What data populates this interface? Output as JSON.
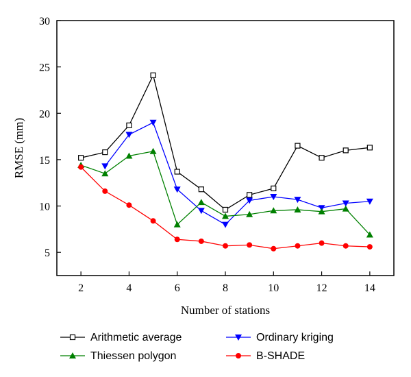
{
  "chart_data": {
    "type": "line",
    "xlabel": "Number of stations",
    "ylabel": "RMSE (mm)",
    "xlim": [
      1.0,
      15.0
    ],
    "ylim": [
      2.5,
      30
    ],
    "xticks": [
      2,
      4,
      6,
      8,
      10,
      12,
      14
    ],
    "yticks": [
      5,
      10,
      15,
      20,
      25,
      30
    ],
    "x": [
      2,
      3,
      4,
      5,
      6,
      7,
      8,
      9,
      10,
      11,
      12,
      13,
      14
    ],
    "legend_position": "bottom",
    "series": [
      {
        "name": "Arithmetic average",
        "color": "#000000",
        "marker": "square-open",
        "x": [
          2,
          3,
          4,
          5,
          6,
          7,
          8,
          9,
          10,
          11,
          12,
          13,
          14
        ],
        "values": [
          15.2,
          15.8,
          18.7,
          24.1,
          13.7,
          11.8,
          9.6,
          11.2,
          11.9,
          16.5,
          15.2,
          16.0,
          16.3
        ]
      },
      {
        "name": "Ordinary kriging",
        "color": "#0000ff",
        "marker": "triangle-down",
        "x": [
          3,
          4,
          5,
          6,
          7,
          8,
          9,
          10,
          11,
          12,
          13,
          14
        ],
        "values": [
          14.3,
          17.7,
          19.0,
          11.8,
          9.5,
          8.0,
          10.6,
          11.0,
          10.7,
          9.8,
          10.3,
          10.5
        ]
      },
      {
        "name": "Thiessen polygon",
        "color": "#008000",
        "marker": "triangle-up",
        "x": [
          2,
          3,
          4,
          5,
          6,
          7,
          8,
          9,
          10,
          11,
          12,
          13,
          14
        ],
        "values": [
          14.4,
          13.5,
          15.4,
          15.9,
          8.0,
          10.4,
          8.9,
          9.1,
          9.5,
          9.6,
          9.4,
          9.7,
          6.9
        ]
      },
      {
        "name": "B-SHADE",
        "color": "#ff0000",
        "marker": "circle",
        "x": [
          2,
          3,
          4,
          5,
          6,
          7,
          8,
          9,
          10,
          11,
          12,
          13,
          14
        ],
        "values": [
          14.2,
          11.6,
          10.1,
          8.4,
          6.4,
          6.2,
          5.7,
          5.8,
          5.4,
          5.7,
          6.0,
          5.7,
          5.6
        ]
      }
    ]
  }
}
